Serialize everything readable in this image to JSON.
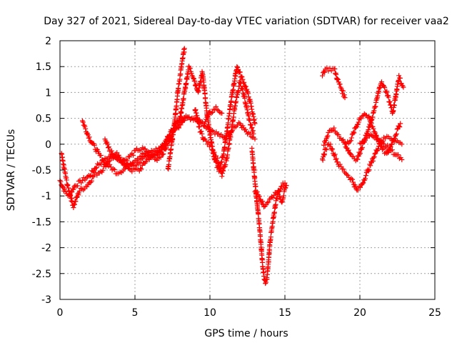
{
  "chart_data": {
    "type": "scatter",
    "title": "Day 327 of 2021, Sidereal Day-to-day VTEC variation (SDTVAR) for receiver vaa2",
    "xlabel": "GPS time / hours",
    "ylabel": "SDTVAR / TECUs",
    "xlim": [
      0,
      25
    ],
    "ylim": [
      -3,
      2
    ],
    "xticks": [
      0,
      5,
      10,
      15,
      20,
      25
    ],
    "yticks": [
      -3,
      -2.5,
      -2,
      -1.5,
      -1,
      -0.5,
      0,
      0.5,
      1,
      1.5,
      2
    ],
    "xtick_labels": [
      "0",
      "5",
      "10",
      "15",
      "20",
      "25"
    ],
    "ytick_labels": [
      "-3",
      "-2.5",
      "-2",
      "-1.5",
      "-1",
      "-0.5",
      "0",
      "0.5",
      "1",
      "1.5",
      "2"
    ],
    "grid": true,
    "marker": "plus",
    "color": "#ff0000",
    "series": [
      {
        "tracks": [
          {
            "x": [
              0.0,
              0.3,
              0.6,
              1.0,
              1.5,
              2.0,
              2.5,
              3.0,
              3.5,
              4.0,
              4.5,
              5.0,
              5.5,
              6.0,
              6.5,
              7.0,
              7.5,
              8.0,
              8.5,
              9.0,
              9.5,
              10.0,
              10.5,
              11.0,
              11.5,
              12.0,
              12.5,
              13.0
            ],
            "y": [
              -0.7,
              -0.9,
              -1.0,
              -0.8,
              -0.7,
              -0.6,
              -0.4,
              -0.3,
              -0.2,
              -0.3,
              -0.4,
              -0.4,
              -0.3,
              -0.2,
              -0.2,
              0.0,
              0.3,
              0.5,
              0.5,
              0.5,
              0.4,
              0.3,
              0.2,
              0.1,
              0.3,
              0.4,
              0.2,
              0.1
            ]
          },
          {
            "x": [
              0.1,
              0.5,
              0.9,
              1.3,
              1.8,
              2.3,
              2.8,
              3.3,
              3.8,
              4.3,
              4.8,
              5.3,
              5.8,
              6.3,
              6.8,
              7.3,
              7.8,
              8.3
            ],
            "y": [
              -0.2,
              -0.8,
              -1.2,
              -0.9,
              -0.8,
              -0.6,
              -0.5,
              -0.3,
              -0.2,
              -0.4,
              -0.5,
              -0.5,
              -0.3,
              -0.2,
              -0.1,
              0.2,
              0.3,
              0.5
            ]
          },
          {
            "x": [
              1.5,
              1.7,
              2.0,
              2.3,
              2.6,
              3.0,
              3.4,
              3.8,
              4.2,
              4.6,
              5.0,
              5.5,
              6.0,
              6.5,
              7.0
            ],
            "y": [
              0.45,
              0.3,
              0.1,
              -0.05,
              -0.2,
              -0.35,
              -0.45,
              -0.55,
              -0.5,
              -0.4,
              -0.3,
              -0.2,
              -0.15,
              -0.1,
              0.0
            ]
          },
          {
            "x": [
              3.0,
              3.3,
              3.6,
              4.0,
              4.4,
              4.8,
              5.2,
              5.6,
              6.0,
              6.4,
              6.8,
              7.2,
              7.6,
              8.0,
              8.4,
              8.8,
              9.2,
              9.6,
              10.0,
              10.4,
              10.8
            ],
            "y": [
              0.1,
              -0.1,
              -0.2,
              -0.3,
              -0.3,
              -0.2,
              -0.1,
              -0.1,
              -0.2,
              -0.3,
              -0.2,
              0.0,
              0.3,
              0.5,
              0.55,
              0.5,
              0.45,
              0.4,
              0.6,
              0.7,
              0.6
            ]
          },
          {
            "x": [
              7.2,
              7.5,
              7.7,
              7.9,
              8.1,
              8.3
            ],
            "y": [
              -0.5,
              0.1,
              0.6,
              1.1,
              1.5,
              1.85
            ]
          },
          {
            "x": [
              8.0,
              8.3,
              8.6,
              8.9,
              9.2,
              9.5,
              9.8,
              10.0,
              10.3,
              10.6,
              10.9,
              11.2,
              11.5,
              11.8,
              12.1,
              12.4,
              12.7,
              13.0
            ],
            "y": [
              0.5,
              1.0,
              1.5,
              1.3,
              1.0,
              1.4,
              0.6,
              0.2,
              -0.3,
              -0.5,
              -0.2,
              0.4,
              1.0,
              1.5,
              1.3,
              1.1,
              0.8,
              0.4
            ]
          },
          {
            "x": [
              9.0,
              9.3,
              9.6,
              9.9,
              10.2,
              10.5,
              10.8,
              11.1,
              11.4,
              11.7,
              12.0,
              12.3,
              12.6,
              12.9
            ],
            "y": [
              0.7,
              0.3,
              0.1,
              0.0,
              -0.1,
              -0.3,
              -0.6,
              -0.3,
              0.2,
              0.8,
              1.2,
              0.9,
              0.5,
              0.2
            ]
          },
          {
            "x": [
              12.8,
              13.0,
              13.2,
              13.4,
              13.5,
              13.6,
              13.7,
              13.8,
              13.9,
              14.0,
              14.2,
              14.4,
              14.6,
              14.8,
              15.0
            ],
            "y": [
              -0.1,
              -0.7,
              -1.3,
              -1.9,
              -2.3,
              -2.55,
              -2.7,
              -2.6,
              -2.3,
              -1.9,
              -1.5,
              -1.1,
              -0.9,
              -0.8,
              -0.75
            ]
          },
          {
            "x": [
              13.0,
              13.3,
              13.6,
              13.9,
              14.2,
              14.5,
              14.8,
              15.1
            ],
            "y": [
              -0.9,
              -1.0,
              -1.2,
              -1.1,
              -1.0,
              -0.9,
              -1.1,
              -0.8
            ]
          },
          {
            "x": [
              17.5,
              17.7,
              18.0,
              18.3,
              18.6,
              18.9,
              19.2,
              19.5,
              19.8,
              20.1,
              20.4,
              20.7,
              21.0,
              21.3,
              21.6,
              21.9,
              22.2,
              22.5,
              22.8
            ],
            "y": [
              -0.3,
              -0.1,
              0.0,
              -0.2,
              -0.4,
              -0.5,
              -0.6,
              -0.7,
              -0.9,
              -0.8,
              -0.6,
              -0.4,
              -0.2,
              0.0,
              0.1,
              0.15,
              0.1,
              0.05,
              0.0
            ]
          },
          {
            "x": [
              17.6,
              17.9,
              18.2,
              18.5,
              18.8,
              19.1,
              19.4,
              19.7,
              20.0,
              20.3,
              20.6,
              20.9,
              21.2,
              21.5,
              21.8,
              22.1,
              22.4,
              22.7
            ],
            "y": [
              0.0,
              0.2,
              0.3,
              0.2,
              0.1,
              0.0,
              0.1,
              0.3,
              0.5,
              0.6,
              0.5,
              0.3,
              0.1,
              -0.1,
              -0.2,
              0.0,
              0.2,
              0.4
            ]
          },
          {
            "x": [
              17.5,
              17.7,
              18.3,
              18.5,
              18.8,
              19.0
            ],
            "y": [
              1.35,
              1.45,
              1.45,
              1.25,
              1.05,
              0.9
            ]
          },
          {
            "x": [
              19.0,
              19.4,
              19.8,
              20.2,
              20.6,
              21.0,
              21.4,
              21.8,
              22.2,
              22.6,
              22.9
            ],
            "y": [
              0.0,
              -0.2,
              -0.3,
              0.0,
              0.3,
              0.7,
              1.2,
              1.0,
              0.6,
              1.3,
              1.1
            ]
          },
          {
            "x": [
              20.0,
              20.4,
              20.8,
              21.2,
              21.6,
              22.0,
              22.4,
              22.8
            ],
            "y": [
              0.0,
              0.1,
              0.2,
              0.1,
              0.0,
              -0.1,
              -0.2,
              -0.3
            ]
          }
        ]
      }
    ]
  }
}
